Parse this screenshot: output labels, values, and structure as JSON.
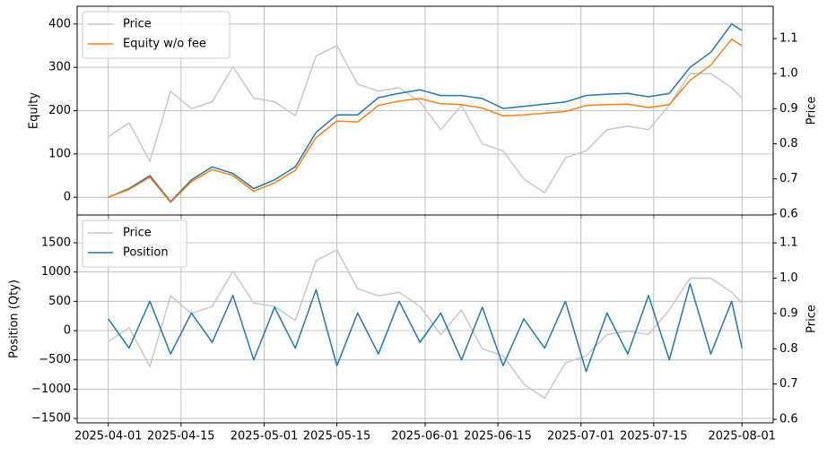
{
  "chart_data": [
    {
      "type": "line",
      "ylabel": "Equity",
      "y2label": "Price",
      "x": [
        "2025-04-01",
        "2025-04-05",
        "2025-04-09",
        "2025-04-13",
        "2025-04-17",
        "2025-04-21",
        "2025-04-25",
        "2025-04-29",
        "2025-05-03",
        "2025-05-07",
        "2025-05-11",
        "2025-05-15",
        "2025-05-19",
        "2025-05-23",
        "2025-05-27",
        "2025-05-31",
        "2025-06-04",
        "2025-06-08",
        "2025-06-12",
        "2025-06-16",
        "2025-06-20",
        "2025-06-24",
        "2025-06-28",
        "2025-07-02",
        "2025-07-06",
        "2025-07-10",
        "2025-07-14",
        "2025-07-18",
        "2025-07-22",
        "2025-07-26",
        "2025-07-30",
        "2025-08-01"
      ],
      "xlim": [
        "2025-03-26",
        "2025-08-07"
      ],
      "xticks": [
        "2025-04-01",
        "2025-04-15",
        "2025-05-01",
        "2025-05-15",
        "2025-06-01",
        "2025-06-15",
        "2025-07-01",
        "2025-07-15",
        "2025-08-01"
      ],
      "ylim": [
        -41,
        441
      ],
      "yticks": [
        0,
        100,
        200,
        300,
        400
      ],
      "y2lim": [
        0.597,
        1.192
      ],
      "y2ticks": [
        0.6,
        0.7,
        0.8,
        0.9,
        {
          "value": 1.0,
          "label": "1.0"
        },
        1.1
      ],
      "grid": true,
      "legend": "upper left",
      "series": [
        {
          "name": "Price",
          "color": "#c8c8c8",
          "axis": "y2",
          "values": [
            0.82,
            0.86,
            0.75,
            0.95,
            0.9,
            0.92,
            1.02,
            0.93,
            0.92,
            0.88,
            1.05,
            1.08,
            0.97,
            0.95,
            0.96,
            0.92,
            0.84,
            0.91,
            0.8,
            0.78,
            0.7,
            0.66,
            0.76,
            0.78,
            0.84,
            0.85,
            0.84,
            0.91,
            1.0,
            1.0,
            0.96,
            0.93
          ]
        },
        {
          "color": "#1f77b4",
          "values": [
            0,
            20,
            50,
            -10,
            40,
            70,
            55,
            20,
            40,
            70,
            150,
            190,
            190,
            230,
            240,
            248,
            235,
            235,
            228,
            205,
            210,
            215,
            220,
            235,
            238,
            240,
            232,
            240,
            300,
            335,
            400,
            385
          ]
        },
        {
          "name": "Equity w/o fee",
          "color": "#ff7f0e",
          "values": [
            0,
            18,
            46,
            -12,
            36,
            64,
            50,
            14,
            33,
            62,
            138,
            176,
            174,
            212,
            222,
            228,
            216,
            214,
            206,
            188,
            190,
            194,
            198,
            212,
            214,
            215,
            207,
            214,
            270,
            305,
            365,
            350
          ]
        }
      ]
    },
    {
      "type": "line",
      "ylabel": "Position (Qty)",
      "y2label": "Price",
      "x": [
        "2025-04-01",
        "2025-04-05",
        "2025-04-09",
        "2025-04-13",
        "2025-04-17",
        "2025-04-21",
        "2025-04-25",
        "2025-04-29",
        "2025-05-03",
        "2025-05-07",
        "2025-05-11",
        "2025-05-15",
        "2025-05-19",
        "2025-05-23",
        "2025-05-27",
        "2025-05-31",
        "2025-06-04",
        "2025-06-08",
        "2025-06-12",
        "2025-06-16",
        "2025-06-20",
        "2025-06-24",
        "2025-06-28",
        "2025-07-02",
        "2025-07-06",
        "2025-07-10",
        "2025-07-14",
        "2025-07-18",
        "2025-07-22",
        "2025-07-26",
        "2025-07-30",
        "2025-08-01"
      ],
      "xlim": [
        "2025-03-26",
        "2025-08-07"
      ],
      "xticks": [
        "2025-04-01",
        "2025-04-15",
        "2025-05-01",
        "2025-05-15",
        "2025-06-01",
        "2025-06-15",
        "2025-07-01",
        "2025-07-15",
        "2025-08-01"
      ],
      "ylim": [
        -1576,
        1974
      ],
      "yticks": [
        {
          "value": -1500,
          "label": "−1500"
        },
        {
          "value": -1000,
          "label": "−1000"
        },
        {
          "value": -500,
          "label": "−500"
        },
        0,
        500,
        1000,
        1500
      ],
      "y2lim": [
        0.59,
        1.179
      ],
      "y2ticks": [
        0.6,
        0.7,
        0.8,
        0.9,
        {
          "value": 1.0,
          "label": "1.0"
        },
        1.1
      ],
      "grid": true,
      "legend": "upper left",
      "series": [
        {
          "name": "Price",
          "color": "#c8c8c8",
          "axis": "y2",
          "values": [
            0.82,
            0.86,
            0.75,
            0.95,
            0.9,
            0.92,
            1.02,
            0.93,
            0.92,
            0.88,
            1.05,
            1.08,
            0.97,
            0.95,
            0.96,
            0.92,
            0.84,
            0.91,
            0.8,
            0.78,
            0.7,
            0.66,
            0.76,
            0.78,
            0.84,
            0.85,
            0.84,
            0.91,
            1.0,
            1.0,
            0.96,
            0.93
          ]
        },
        {
          "name": "Position",
          "color": "#1f77b4",
          "values": [
            200,
            -300,
            500,
            -400,
            300,
            -200,
            600,
            -500,
            400,
            -300,
            700,
            -600,
            300,
            -400,
            500,
            -200,
            300,
            -500,
            400,
            -600,
            200,
            -300,
            500,
            -700,
            300,
            -400,
            600,
            -500,
            800,
            -400,
            500,
            -300
          ]
        }
      ]
    }
  ]
}
